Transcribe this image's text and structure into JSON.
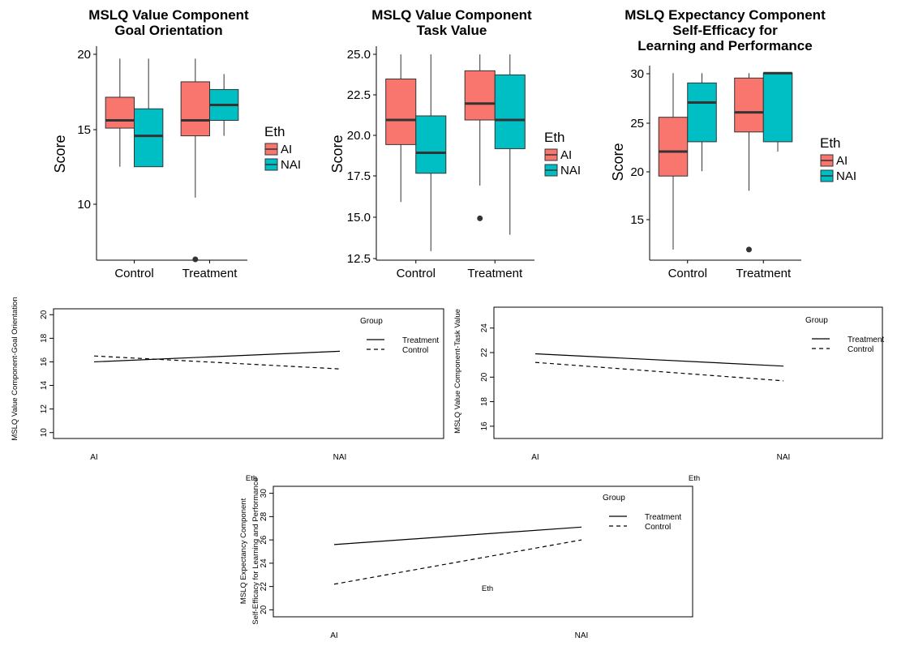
{
  "chart_data": [
    {
      "type": "box",
      "title": [
        "MSLQ Value Component",
        "Goal Orientation"
      ],
      "xlabel": "",
      "ylabel": "Score",
      "categories": [
        "Control",
        "Treatment"
      ],
      "ylim": [
        7,
        20.7
      ],
      "yticks": [
        "10",
        "15",
        "20"
      ],
      "legend": {
        "title": "Eth",
        "position": "right",
        "items": [
          "AI",
          "NAI"
        ]
      },
      "colors": {
        "AI": "#F8766D",
        "NAI": "#00BFC4"
      },
      "boxes": [
        {
          "category": "Control",
          "group": "AI",
          "min": 13,
          "q1": 15.5,
          "median": 16,
          "q3": 17.5,
          "max": 20,
          "outliers": []
        },
        {
          "category": "Control",
          "group": "NAI",
          "min": 13,
          "q1": 13,
          "median": 15,
          "q3": 16.75,
          "max": 20,
          "outliers": []
        },
        {
          "category": "Treatment",
          "group": "AI",
          "min": 11,
          "q1": 15,
          "median": 16,
          "q3": 18.5,
          "max": 20,
          "outliers": [
            7
          ]
        },
        {
          "category": "Treatment",
          "group": "NAI",
          "min": 15,
          "q1": 16,
          "median": 17,
          "q3": 18,
          "max": 19,
          "outliers": []
        }
      ]
    },
    {
      "type": "box",
      "title": [
        "MSLQ Value Component",
        "Task Value"
      ],
      "xlabel": "",
      "ylabel": "Score",
      "categories": [
        "Control",
        "Treatment"
      ],
      "ylim": [
        12.5,
        25.4
      ],
      "yticks": [
        "12.5",
        "15.0",
        "17.5",
        "20.0",
        "22.5",
        "25.0"
      ],
      "legend": {
        "title": "Eth",
        "position": "right",
        "items": [
          "AI",
          "NAI"
        ]
      },
      "colors": {
        "AI": "#F8766D",
        "NAI": "#00BFC4"
      },
      "boxes": [
        {
          "category": "Control",
          "group": "AI",
          "min": 16,
          "q1": 19.5,
          "median": 21,
          "q3": 23.5,
          "max": 25,
          "outliers": []
        },
        {
          "category": "Control",
          "group": "NAI",
          "min": 13,
          "q1": 17.75,
          "median": 19,
          "q3": 21.25,
          "max": 25,
          "outliers": []
        },
        {
          "category": "Treatment",
          "group": "AI",
          "min": 17,
          "q1": 21,
          "median": 22,
          "q3": 24,
          "max": 25,
          "outliers": [
            15
          ]
        },
        {
          "category": "Treatment",
          "group": "NAI",
          "min": 14,
          "q1": 19.25,
          "median": 21,
          "q3": 23.75,
          "max": 25,
          "outliers": []
        }
      ]
    },
    {
      "type": "box",
      "title": [
        "MSLQ Expectancy Component",
        "Self-Efficacy for",
        "Learning and Performance"
      ],
      "xlabel": "",
      "ylabel": "Score",
      "categories": [
        "Control",
        "Treatment"
      ],
      "ylim": [
        11,
        30.6
      ],
      "yticks": [
        "15",
        "20",
        "25",
        "30"
      ],
      "legend": {
        "title": "Eth",
        "position": "right",
        "items": [
          "AI",
          "NAI"
        ]
      },
      "colors": {
        "AI": "#F8766D",
        "NAI": "#00BFC4"
      },
      "boxes": [
        {
          "category": "Control",
          "group": "AI",
          "min": 12,
          "q1": 19.5,
          "median": 22,
          "q3": 25.5,
          "max": 30,
          "outliers": []
        },
        {
          "category": "Control",
          "group": "NAI",
          "min": 20,
          "q1": 23,
          "median": 27,
          "q3": 29,
          "max": 30,
          "outliers": []
        },
        {
          "category": "Treatment",
          "group": "AI",
          "min": 18,
          "q1": 24,
          "median": 26,
          "q3": 29.5,
          "max": 30,
          "outliers": [
            12
          ]
        },
        {
          "category": "Treatment",
          "group": "NAI",
          "min": 22,
          "q1": 23,
          "median": 30,
          "q3": 30,
          "max": 30,
          "outliers": []
        }
      ]
    },
    {
      "type": "line",
      "title": "",
      "xlabel": "Eth",
      "ylabel": [
        "MSLQ Value Component-Goal Orientation"
      ],
      "categories": [
        "AI",
        "NAI"
      ],
      "ylim": [
        9.5,
        20.5
      ],
      "yticks": [
        10,
        12,
        14,
        16,
        18,
        20
      ],
      "legend": {
        "title": "Group",
        "position": "top-right"
      },
      "series": [
        {
          "name": "Treatment",
          "style": "solid",
          "values": [
            16.0,
            16.9
          ]
        },
        {
          "name": "Control",
          "style": "dashed",
          "values": [
            16.5,
            15.4
          ]
        }
      ]
    },
    {
      "type": "line",
      "title": "",
      "xlabel": "Eth",
      "ylabel": [
        "MSLQ Value Component-Task Value"
      ],
      "categories": [
        "AI",
        "NAI"
      ],
      "ylim": [
        15,
        25.7
      ],
      "yticks": [
        16,
        18,
        20,
        22,
        24
      ],
      "legend": {
        "title": "Group",
        "position": "top-right"
      },
      "series": [
        {
          "name": "Treatment",
          "style": "solid",
          "values": [
            21.9,
            20.9
          ]
        },
        {
          "name": "Control",
          "style": "dashed",
          "values": [
            21.2,
            19.7
          ]
        }
      ]
    },
    {
      "type": "line",
      "title": "",
      "xlabel": "Eth",
      "ylabel": [
        "MSLQ Expectancy Component",
        "Self-Efficacy for Learning and Performance"
      ],
      "categories": [
        "AI",
        "NAI"
      ],
      "ylim": [
        19.4,
        30.6
      ],
      "yticks": [
        20,
        22,
        24,
        26,
        28,
        30
      ],
      "legend": {
        "title": "Group",
        "position": "top-right"
      },
      "series": [
        {
          "name": "Treatment",
          "style": "solid",
          "values": [
            25.6,
            27.1
          ]
        },
        {
          "name": "Control",
          "style": "dashed",
          "values": [
            22.2,
            26.0
          ]
        }
      ]
    }
  ]
}
